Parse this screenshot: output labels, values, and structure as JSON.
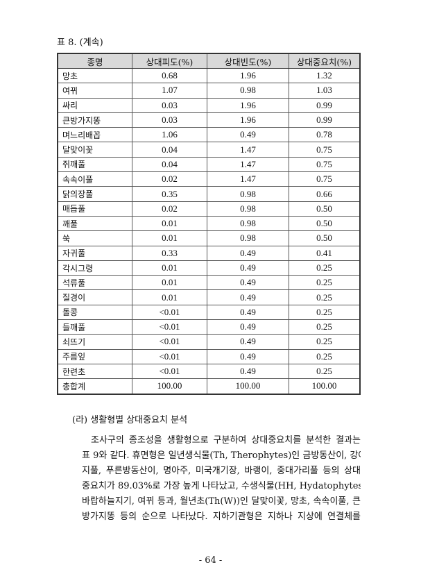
{
  "caption": "표 8. (계속)",
  "table": {
    "headers": [
      "종명",
      "상대피도(%)",
      "상대빈도(%)",
      "상대중요치(%)"
    ],
    "rows": [
      [
        "망초",
        "0.68",
        "1.96",
        "1.32"
      ],
      [
        "여뀌",
        "1.07",
        "0.98",
        "1.03"
      ],
      [
        "싸리",
        "0.03",
        "1.96",
        "0.99"
      ],
      [
        "큰방가지똥",
        "0.03",
        "1.96",
        "0.99"
      ],
      [
        "며느리배꼽",
        "1.06",
        "0.49",
        "0.78"
      ],
      [
        "달맞이꽃",
        "0.04",
        "1.47",
        "0.75"
      ],
      [
        "쥐깨풀",
        "0.04",
        "1.47",
        "0.75"
      ],
      [
        "속속이풀",
        "0.02",
        "1.47",
        "0.75"
      ],
      [
        "닭의장풀",
        "0.35",
        "0.98",
        "0.66"
      ],
      [
        "매듭풀",
        "0.02",
        "0.98",
        "0.50"
      ],
      [
        "깨풀",
        "0.01",
        "0.98",
        "0.50"
      ],
      [
        "쑥",
        "0.01",
        "0.98",
        "0.50"
      ],
      [
        "자귀풀",
        "0.33",
        "0.49",
        "0.41"
      ],
      [
        "각시그령",
        "0.01",
        "0.49",
        "0.25"
      ],
      [
        "석류풀",
        "0.01",
        "0.49",
        "0.25"
      ],
      [
        "질경이",
        "0.01",
        "0.49",
        "0.25"
      ],
      [
        "돌콩",
        "<0.01",
        "0.49",
        "0.25"
      ],
      [
        "들깨풀",
        "<0.01",
        "0.49",
        "0.25"
      ],
      [
        "쇠뜨기",
        "<0.01",
        "0.49",
        "0.25"
      ],
      [
        "주름잎",
        "<0.01",
        "0.49",
        "0.25"
      ],
      [
        "한련초",
        "<0.01",
        "0.49",
        "0.25"
      ]
    ],
    "total": [
      "총합계",
      "100.00",
      "100.00",
      "100.00"
    ]
  },
  "section_heading": "(라) 생활형별 상대중요치 분석",
  "paragraph_lines": [
    "조사구의 종조성을 생활형으로 구분하여 상대중요치를 분석한 결과는",
    "표 9와 같다. 휴면형은 일년생식물(Th, Therophytes)인 금방동산이, 강아",
    "지풀, 푸른방동산이, 명아주, 미국개기장, 바랭이, 중대가리풀 등의 상대",
    "중요치가 89.03%로 가장 높게 나타났고, 수생식물(HH, Hydatophytes)인",
    "바랍하늘지기, 여뀌 등과, 월년초(Th(W))인 달맞이꽃, 망초, 속속이풀, 큰",
    "방가지똥 등의 순으로 나타났다. 지하기관형은 지하나 지상에 연결체를"
  ],
  "page_number": "- 64 -"
}
